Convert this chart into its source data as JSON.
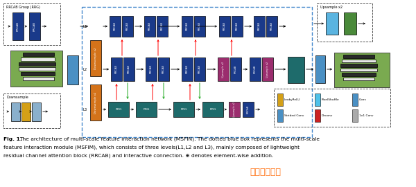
{
  "fig_width": 6.0,
  "fig_height": 2.7,
  "dpi": 100,
  "bg_color": "#ffffff",
  "caption_bold": "Fig. 1.",
  "caption_line1": "  The architecture of multi-scale feature interaction network (MSFIN). The dotted blue box represents the multi-scale",
  "caption_line2": "feature interaction module (MSFIM), which consists of three levels(L1,L2 and L3), mainly composed of lightweight",
  "caption_line3": "residual channel attention block (RRCAB) and interactive connection. ⊕ denotes element-wise addition.",
  "caption_fontsize": 5.4,
  "watermark_text": "彩虹网址导航",
  "watermark_color": "#ff6600",
  "colors": {
    "dark_blue": "#1a3a8a",
    "orange": "#d4731a",
    "teal": "#1e6b6b",
    "magenta": "#9b2d6e",
    "light_blue": "#4a90c4",
    "sky_blue": "#5ab4e0",
    "green": "#4a8a3a",
    "yellow": "#d4a017",
    "gray_blue": "#7090b8",
    "gray": "#888888",
    "light_gray_blue": "#8ab0cc"
  }
}
